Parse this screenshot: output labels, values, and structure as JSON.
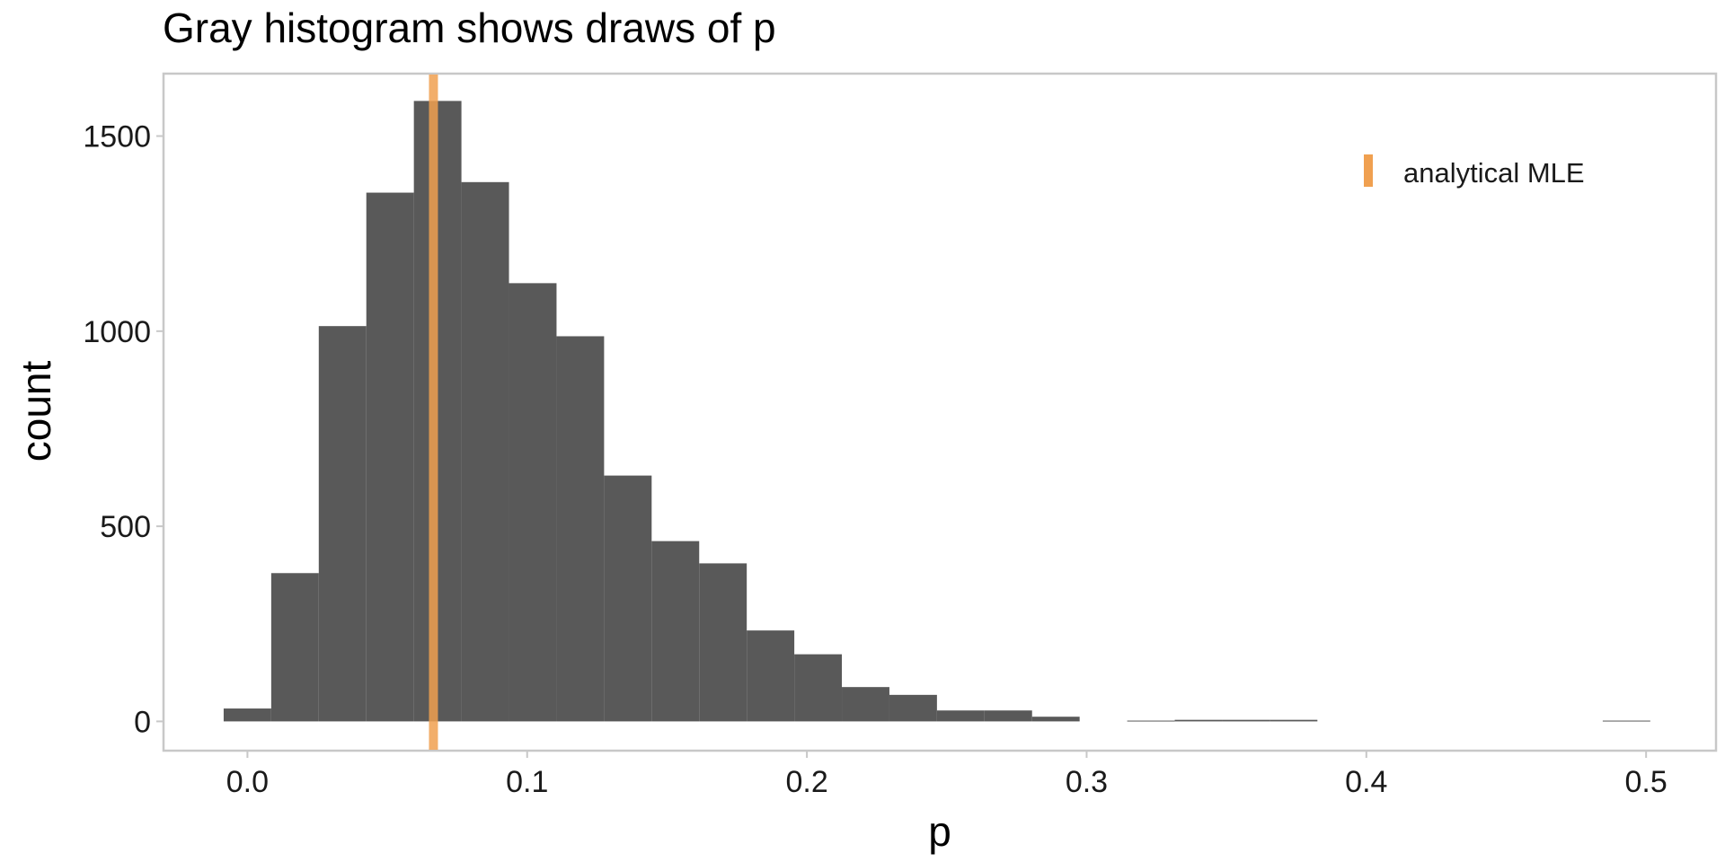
{
  "chart_data": {
    "type": "bar",
    "title": "Gray histogram shows draws of p",
    "xlabel": "p",
    "ylabel": "count",
    "xlim": [
      -0.03,
      0.525
    ],
    "ylim": [
      -75,
      1660
    ],
    "x_ticks": [
      0.0,
      0.1,
      0.2,
      0.3,
      0.4,
      0.5
    ],
    "x_tick_labels": [
      "0.0",
      "0.1",
      "0.2",
      "0.3",
      "0.4",
      "0.5"
    ],
    "y_ticks": [
      0,
      500,
      1000,
      1500
    ],
    "y_tick_labels": [
      "0",
      "500",
      "1000",
      "1500"
    ],
    "grid": false,
    "bar_color": "#595959",
    "bins": [
      {
        "x0": -0.0085,
        "x1": 0.0085,
        "count": 33
      },
      {
        "x0": 0.0085,
        "x1": 0.0255,
        "count": 380
      },
      {
        "x0": 0.0255,
        "x1": 0.0425,
        "count": 1013
      },
      {
        "x0": 0.0425,
        "x1": 0.0595,
        "count": 1355
      },
      {
        "x0": 0.0595,
        "x1": 0.0765,
        "count": 1590
      },
      {
        "x0": 0.0765,
        "x1": 0.0935,
        "count": 1382
      },
      {
        "x0": 0.0935,
        "x1": 0.1105,
        "count": 1123
      },
      {
        "x0": 0.1105,
        "x1": 0.1275,
        "count": 987
      },
      {
        "x0": 0.1275,
        "x1": 0.1445,
        "count": 630
      },
      {
        "x0": 0.1445,
        "x1": 0.1615,
        "count": 462
      },
      {
        "x0": 0.1615,
        "x1": 0.1785,
        "count": 405
      },
      {
        "x0": 0.1785,
        "x1": 0.1955,
        "count": 233
      },
      {
        "x0": 0.1955,
        "x1": 0.2125,
        "count": 172
      },
      {
        "x0": 0.2125,
        "x1": 0.2295,
        "count": 88
      },
      {
        "x0": 0.2295,
        "x1": 0.2465,
        "count": 68
      },
      {
        "x0": 0.2465,
        "x1": 0.2635,
        "count": 28
      },
      {
        "x0": 0.2635,
        "x1": 0.2805,
        "count": 28
      },
      {
        "x0": 0.2805,
        "x1": 0.2975,
        "count": 12
      },
      {
        "x0": 0.3145,
        "x1": 0.3315,
        "count": 2
      },
      {
        "x0": 0.3315,
        "x1": 0.3485,
        "count": 4
      },
      {
        "x0": 0.3485,
        "x1": 0.3655,
        "count": 4
      },
      {
        "x0": 0.3655,
        "x1": 0.3825,
        "count": 4
      },
      {
        "x0": 0.4845,
        "x1": 0.5015,
        "count": 2
      }
    ],
    "reference_lines": [
      {
        "name": "analytical MLE",
        "x": 0.0665,
        "color": "#F0A050"
      }
    ],
    "legend": {
      "entries": [
        "analytical MLE"
      ],
      "position": "top-right",
      "inside": true
    }
  }
}
